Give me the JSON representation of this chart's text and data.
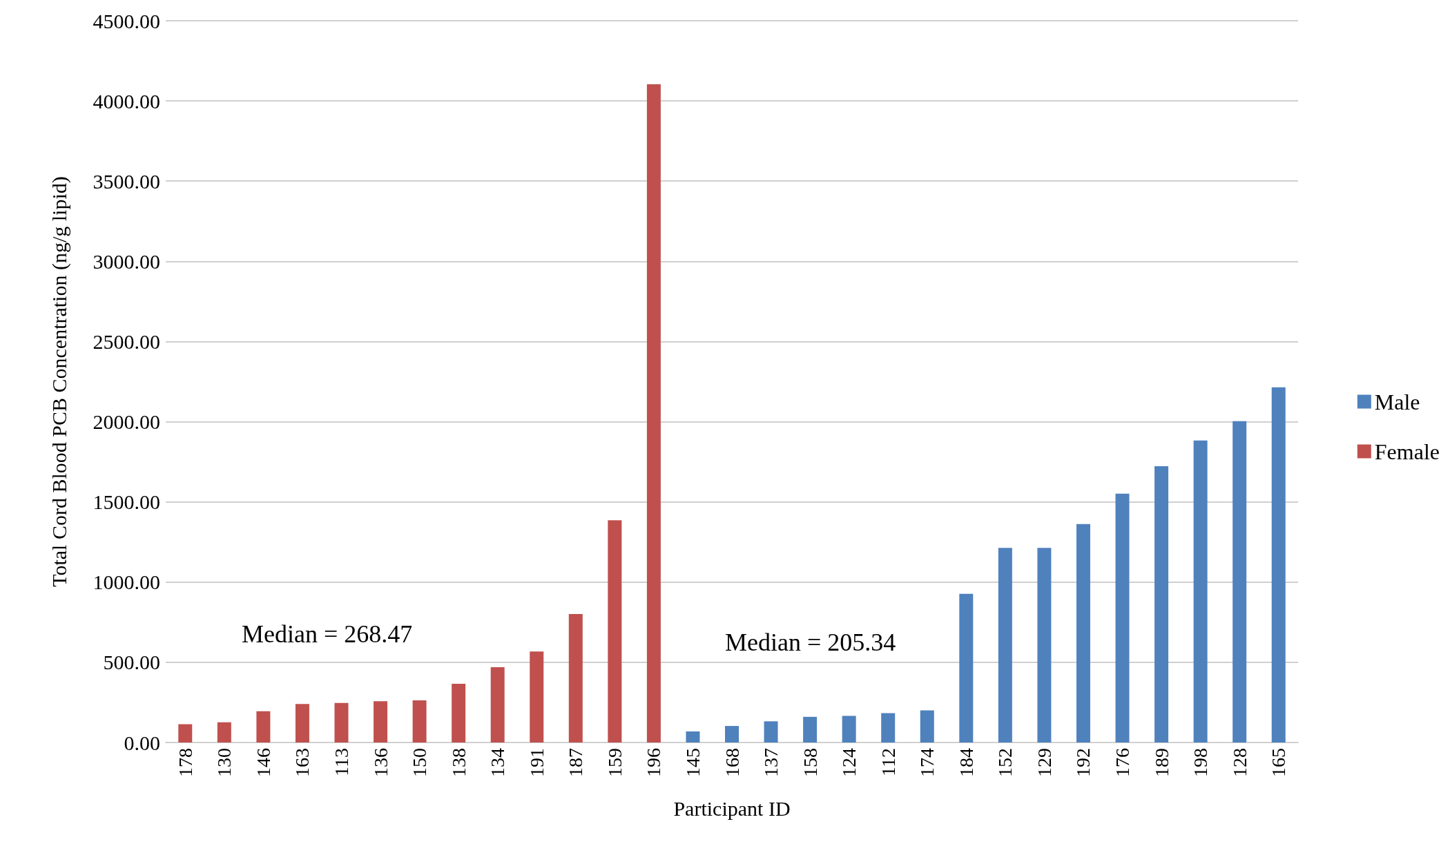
{
  "chart_data": {
    "type": "bar",
    "xlabel": "Participant ID",
    "ylabel": "Total Cord Blood PCB Concentration (ng/g lipid)",
    "categories": [
      "178",
      "130",
      "146",
      "163",
      "113",
      "136",
      "150",
      "138",
      "134",
      "191",
      "187",
      "159",
      "196",
      "145",
      "168",
      "137",
      "158",
      "124",
      "112",
      "174",
      "184",
      "152",
      "129",
      "192",
      "176",
      "189",
      "198",
      "128",
      "165"
    ],
    "series": [
      {
        "name": "Male",
        "color": "#4f81bd",
        "values": [
          null,
          null,
          null,
          null,
          null,
          null,
          null,
          null,
          null,
          null,
          null,
          null,
          null,
          69,
          103,
          132,
          160,
          166,
          183,
          200,
          927,
          1213,
          1213,
          1362,
          1551,
          1723,
          1883,
          2003,
          2215
        ]
      },
      {
        "name": "Female",
        "color": "#c0504d",
        "values": [
          114,
          126,
          195,
          240,
          246,
          257,
          263,
          366,
          469,
          567,
          801,
          1385,
          4104,
          null,
          null,
          null,
          null,
          null,
          null,
          null,
          null,
          null,
          null,
          null,
          null,
          null,
          null,
          null,
          null
        ]
      }
    ],
    "ylim": [
      0,
      4500
    ],
    "yticks": [
      {
        "value": 0,
        "label": "0.00"
      },
      {
        "value": 500,
        "label": "500.00"
      },
      {
        "value": 1000,
        "label": "1000.00"
      },
      {
        "value": 1500,
        "label": "1500.00"
      },
      {
        "value": 2000,
        "label": "2000.00"
      },
      {
        "value": 2500,
        "label": "2500.00"
      },
      {
        "value": 3000,
        "label": "3000.00"
      },
      {
        "value": 3500,
        "label": "3500.00"
      },
      {
        "value": 4000,
        "label": "4000.00"
      },
      {
        "value": 4500,
        "label": "4500.00"
      }
    ],
    "annotations": [
      "Median = 268.47",
      "Median = 205.34"
    ],
    "grid": "y",
    "legend": "right"
  }
}
